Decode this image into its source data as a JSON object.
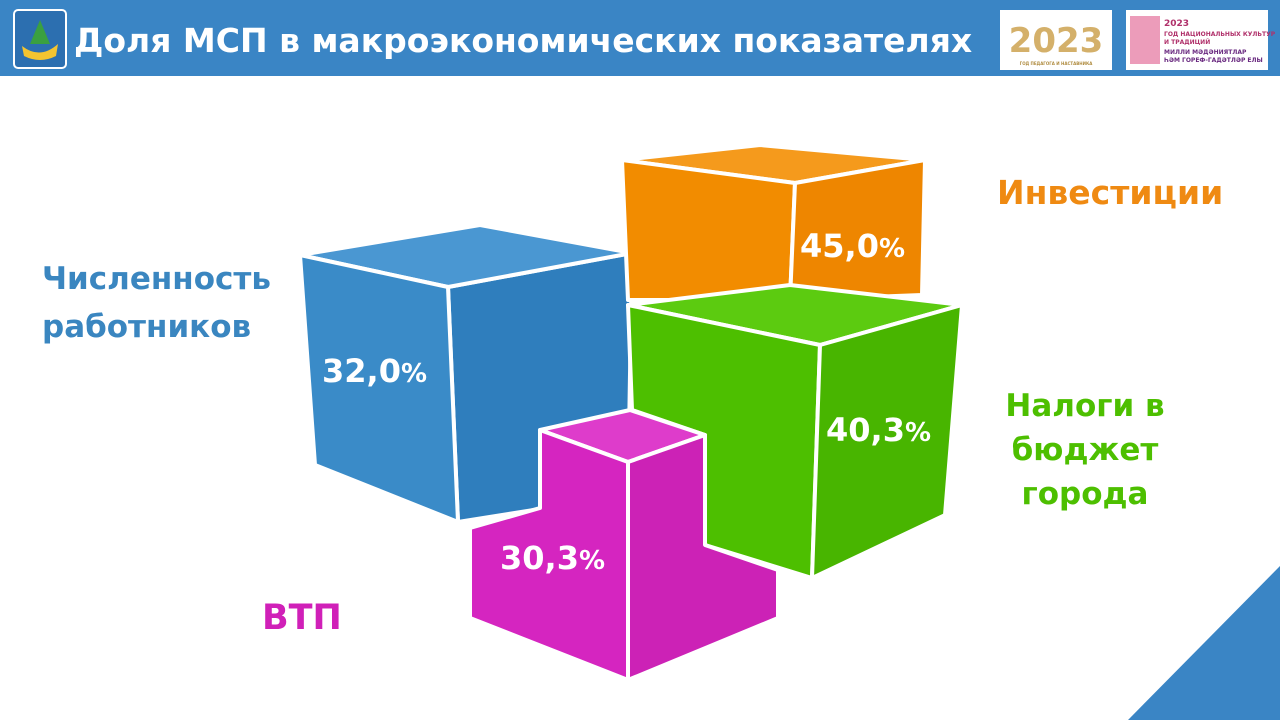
{
  "header": {
    "title": "Доля МСП в макроэкономических показателях",
    "logo_left": {
      "year": "2023",
      "caption": "ГОД ПЕДАГОГА И НАСТАВНИКА"
    },
    "logo_right": {
      "year": "2023",
      "lines": [
        "ГОД НАЦИОНАЛЬНЫХ КУЛЬТУР",
        "И ТРАДИЦИЙ",
        "МИЛЛИ МӘДӘНИЯТЛАР",
        "ҺӘМ ГОРЕФ-ГАДӘТЛӘР ЕЛЫ"
      ]
    }
  },
  "items": [
    {
      "label": [
        "Численность",
        "работников"
      ],
      "value": "32,0",
      "unit": "%"
    },
    {
      "label": [
        "Инвестиции"
      ],
      "value": "45,0",
      "unit": "%"
    },
    {
      "label": [
        "Налоги в",
        "бюджет",
        "города"
      ],
      "value": "40,3",
      "unit": "%"
    },
    {
      "label": [
        "ВТП"
      ],
      "value": "30,3",
      "unit": "%"
    }
  ]
}
